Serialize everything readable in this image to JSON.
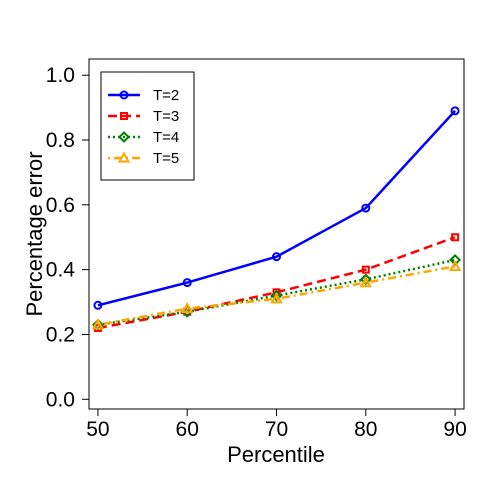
{
  "chart_data": {
    "type": "line",
    "title": "",
    "xlabel": "Percentile",
    "ylabel": "Percentage error",
    "x": [
      50,
      60,
      70,
      80,
      90
    ],
    "x_ticks": [
      "50",
      "60",
      "70",
      "80",
      "90"
    ],
    "y_ticks": [
      "0.0",
      "0.2",
      "0.4",
      "0.6",
      "0.8",
      "1.0"
    ],
    "xlim": [
      49,
      91
    ],
    "ylim": [
      -0.03,
      1.05
    ],
    "grid": false,
    "legend_position": "top-left",
    "series": [
      {
        "name": "T=2",
        "color": "#0000ff",
        "marker": "circle",
        "line_style": "solid",
        "values": [
          0.29,
          0.36,
          0.44,
          0.59,
          0.89
        ]
      },
      {
        "name": "T=3",
        "color": "#ff0000",
        "marker": "square",
        "line_style": "dashed",
        "values": [
          0.22,
          0.27,
          0.33,
          0.4,
          0.5
        ]
      },
      {
        "name": "T=4",
        "color": "#008000",
        "marker": "diamond",
        "line_style": "dotted",
        "values": [
          0.23,
          0.27,
          0.32,
          0.37,
          0.43
        ]
      },
      {
        "name": "T=5",
        "color": "#ffa500",
        "marker": "triangle",
        "line_style": "dotdash",
        "values": [
          0.23,
          0.28,
          0.31,
          0.36,
          0.41
        ]
      }
    ]
  }
}
